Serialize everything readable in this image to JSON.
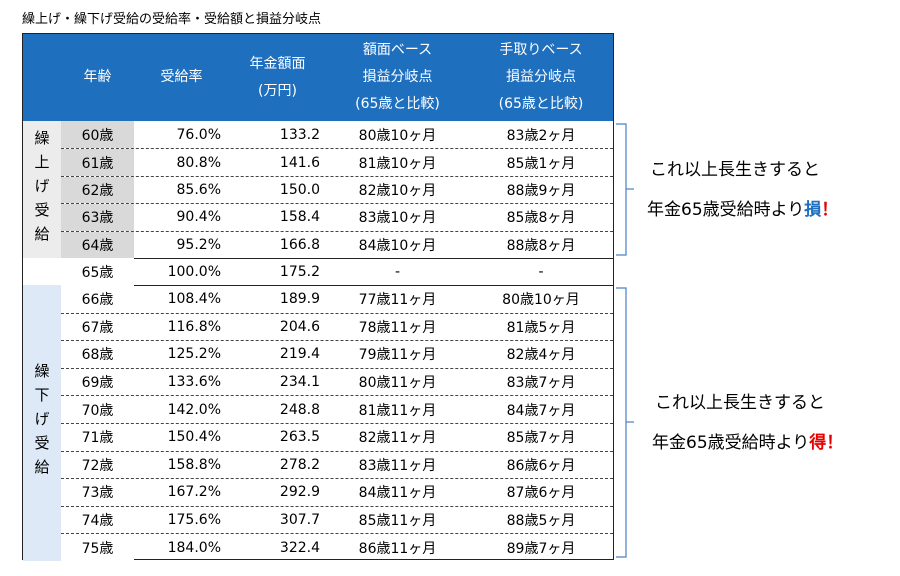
{
  "title": "繰上げ・繰下げ受給の受給率・受給額と損益分岐点",
  "table": {
    "header": [
      [
        "年齢"
      ],
      [
        "受給率"
      ],
      [
        "年金額面",
        "(万円)"
      ],
      [
        "額面ベース",
        "損益分岐点",
        "(65歳と比較)"
      ],
      [
        "手取りベース",
        "損益分岐点",
        "(65歳と比較)"
      ]
    ],
    "groups": [
      {
        "label": "繰上げ受給",
        "rows": [
          [
            "60歳",
            "76.0%",
            "133.2",
            "80歳10ヶ月",
            "83歳2ヶ月"
          ],
          [
            "61歳",
            "80.8%",
            "141.6",
            "81歳10ヶ月",
            "85歳1ヶ月"
          ],
          [
            "62歳",
            "85.6%",
            "150.0",
            "82歳10ヶ月",
            "88歳9ヶ月"
          ],
          [
            "63歳",
            "90.4%",
            "158.4",
            "83歳10ヶ月",
            "85歳8ヶ月"
          ],
          [
            "64歳",
            "95.2%",
            "166.8",
            "84歳10ヶ月",
            "88歳8ヶ月"
          ]
        ]
      },
      {
        "rows": [
          [
            "65歳",
            "100.0%",
            "175.2",
            "-",
            "-"
          ]
        ]
      },
      {
        "label": "繰下げ受給",
        "rows": [
          [
            "66歳",
            "108.4%",
            "189.9",
            "77歳11ヶ月",
            "80歳10ヶ月"
          ],
          [
            "67歳",
            "116.8%",
            "204.6",
            "78歳11ヶ月",
            "81歳5ヶ月"
          ],
          [
            "68歳",
            "125.2%",
            "219.4",
            "79歳11ヶ月",
            "82歳4ヶ月"
          ],
          [
            "69歳",
            "133.6%",
            "234.1",
            "80歳11ヶ月",
            "83歳7ヶ月"
          ],
          [
            "70歳",
            "142.0%",
            "248.8",
            "81歳11ヶ月",
            "84歳7ヶ月"
          ],
          [
            "71歳",
            "150.4%",
            "263.5",
            "82歳11ヶ月",
            "85歳7ヶ月"
          ],
          [
            "72歳",
            "158.8%",
            "278.2",
            "83歳11ヶ月",
            "86歳6ヶ月"
          ],
          [
            "73歳",
            "167.2%",
            "292.9",
            "84歳11ヶ月",
            "87歳6ヶ月"
          ],
          [
            "74歳",
            "175.6%",
            "307.7",
            "85歳11ヶ月",
            "88歳5ヶ月"
          ],
          [
            "75歳",
            "184.0%",
            "322.4",
            "86歳11ヶ月",
            "89歳7ヶ月"
          ]
        ]
      }
    ]
  },
  "notes": [
    {
      "line1": "これ以上長生きすると",
      "line2": "年金65歳受給時より",
      "emphasis": "損",
      "mark": "！"
    },
    {
      "line1": "これ以上長生きすると",
      "line2": "年金65歳受給時より",
      "emphasis": "得",
      "mark": "！"
    }
  ]
}
